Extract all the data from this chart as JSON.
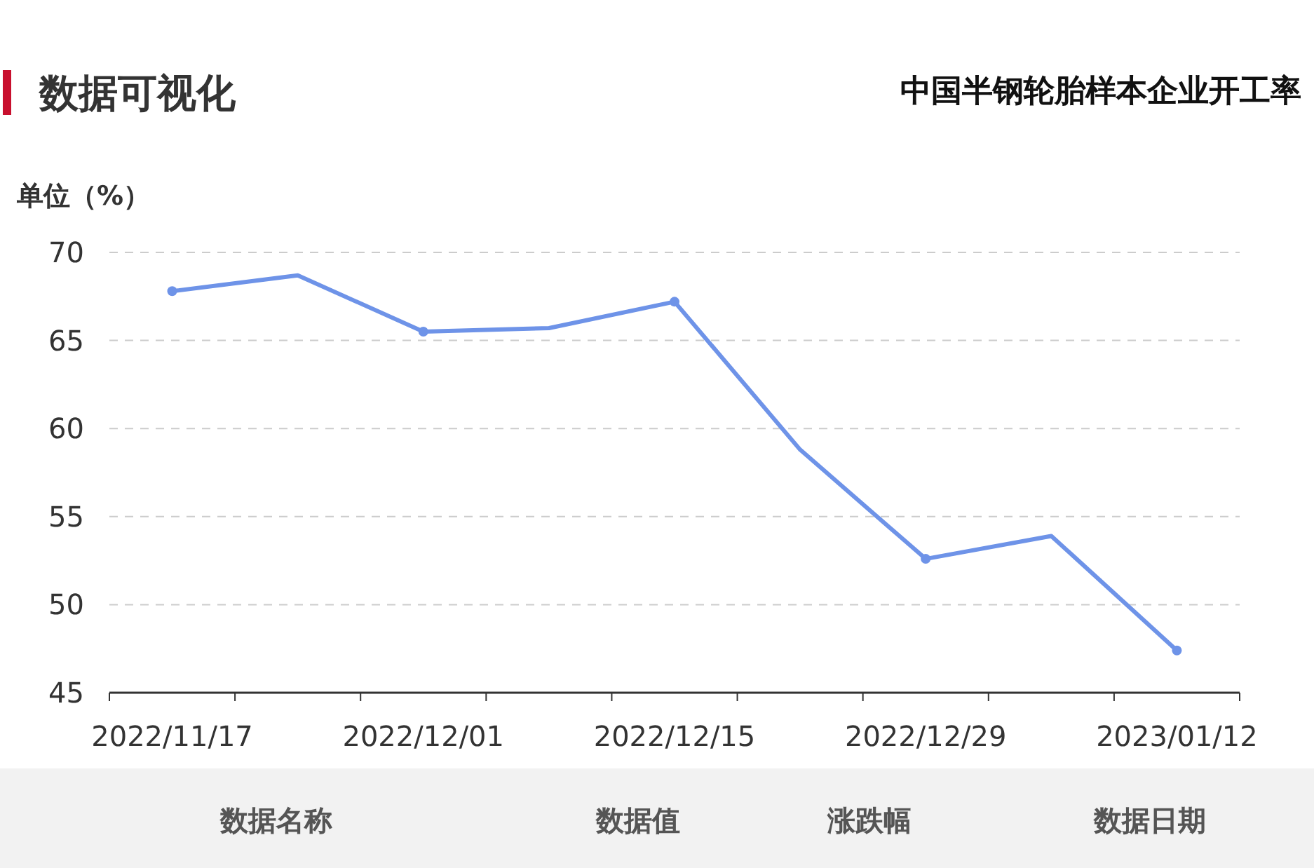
{
  "chart_data": {
    "type": "line",
    "title": "中国半钢轮胎样本企业开工率",
    "ylabel": "单位（%）",
    "categories": [
      "2022/11/17",
      null,
      "2022/12/01",
      null,
      "2022/12/15",
      null,
      "2022/12/29",
      null,
      "2023/01/12"
    ],
    "series": [
      {
        "color": "#6e93e8",
        "values": [
          67.8,
          68.7,
          65.5,
          65.7,
          67.2,
          58.8,
          52.6,
          53.9,
          47.4
        ]
      }
    ],
    "ylim": [
      45,
      70
    ],
    "yticks": [
      45,
      50,
      55,
      60,
      65,
      70
    ],
    "grid": "y",
    "marker": "circle",
    "line_style": "solid",
    "annotations": [
      "数据可视化",
      "数据名称",
      "数据值",
      "涨跌幅",
      "数据日期"
    ]
  }
}
